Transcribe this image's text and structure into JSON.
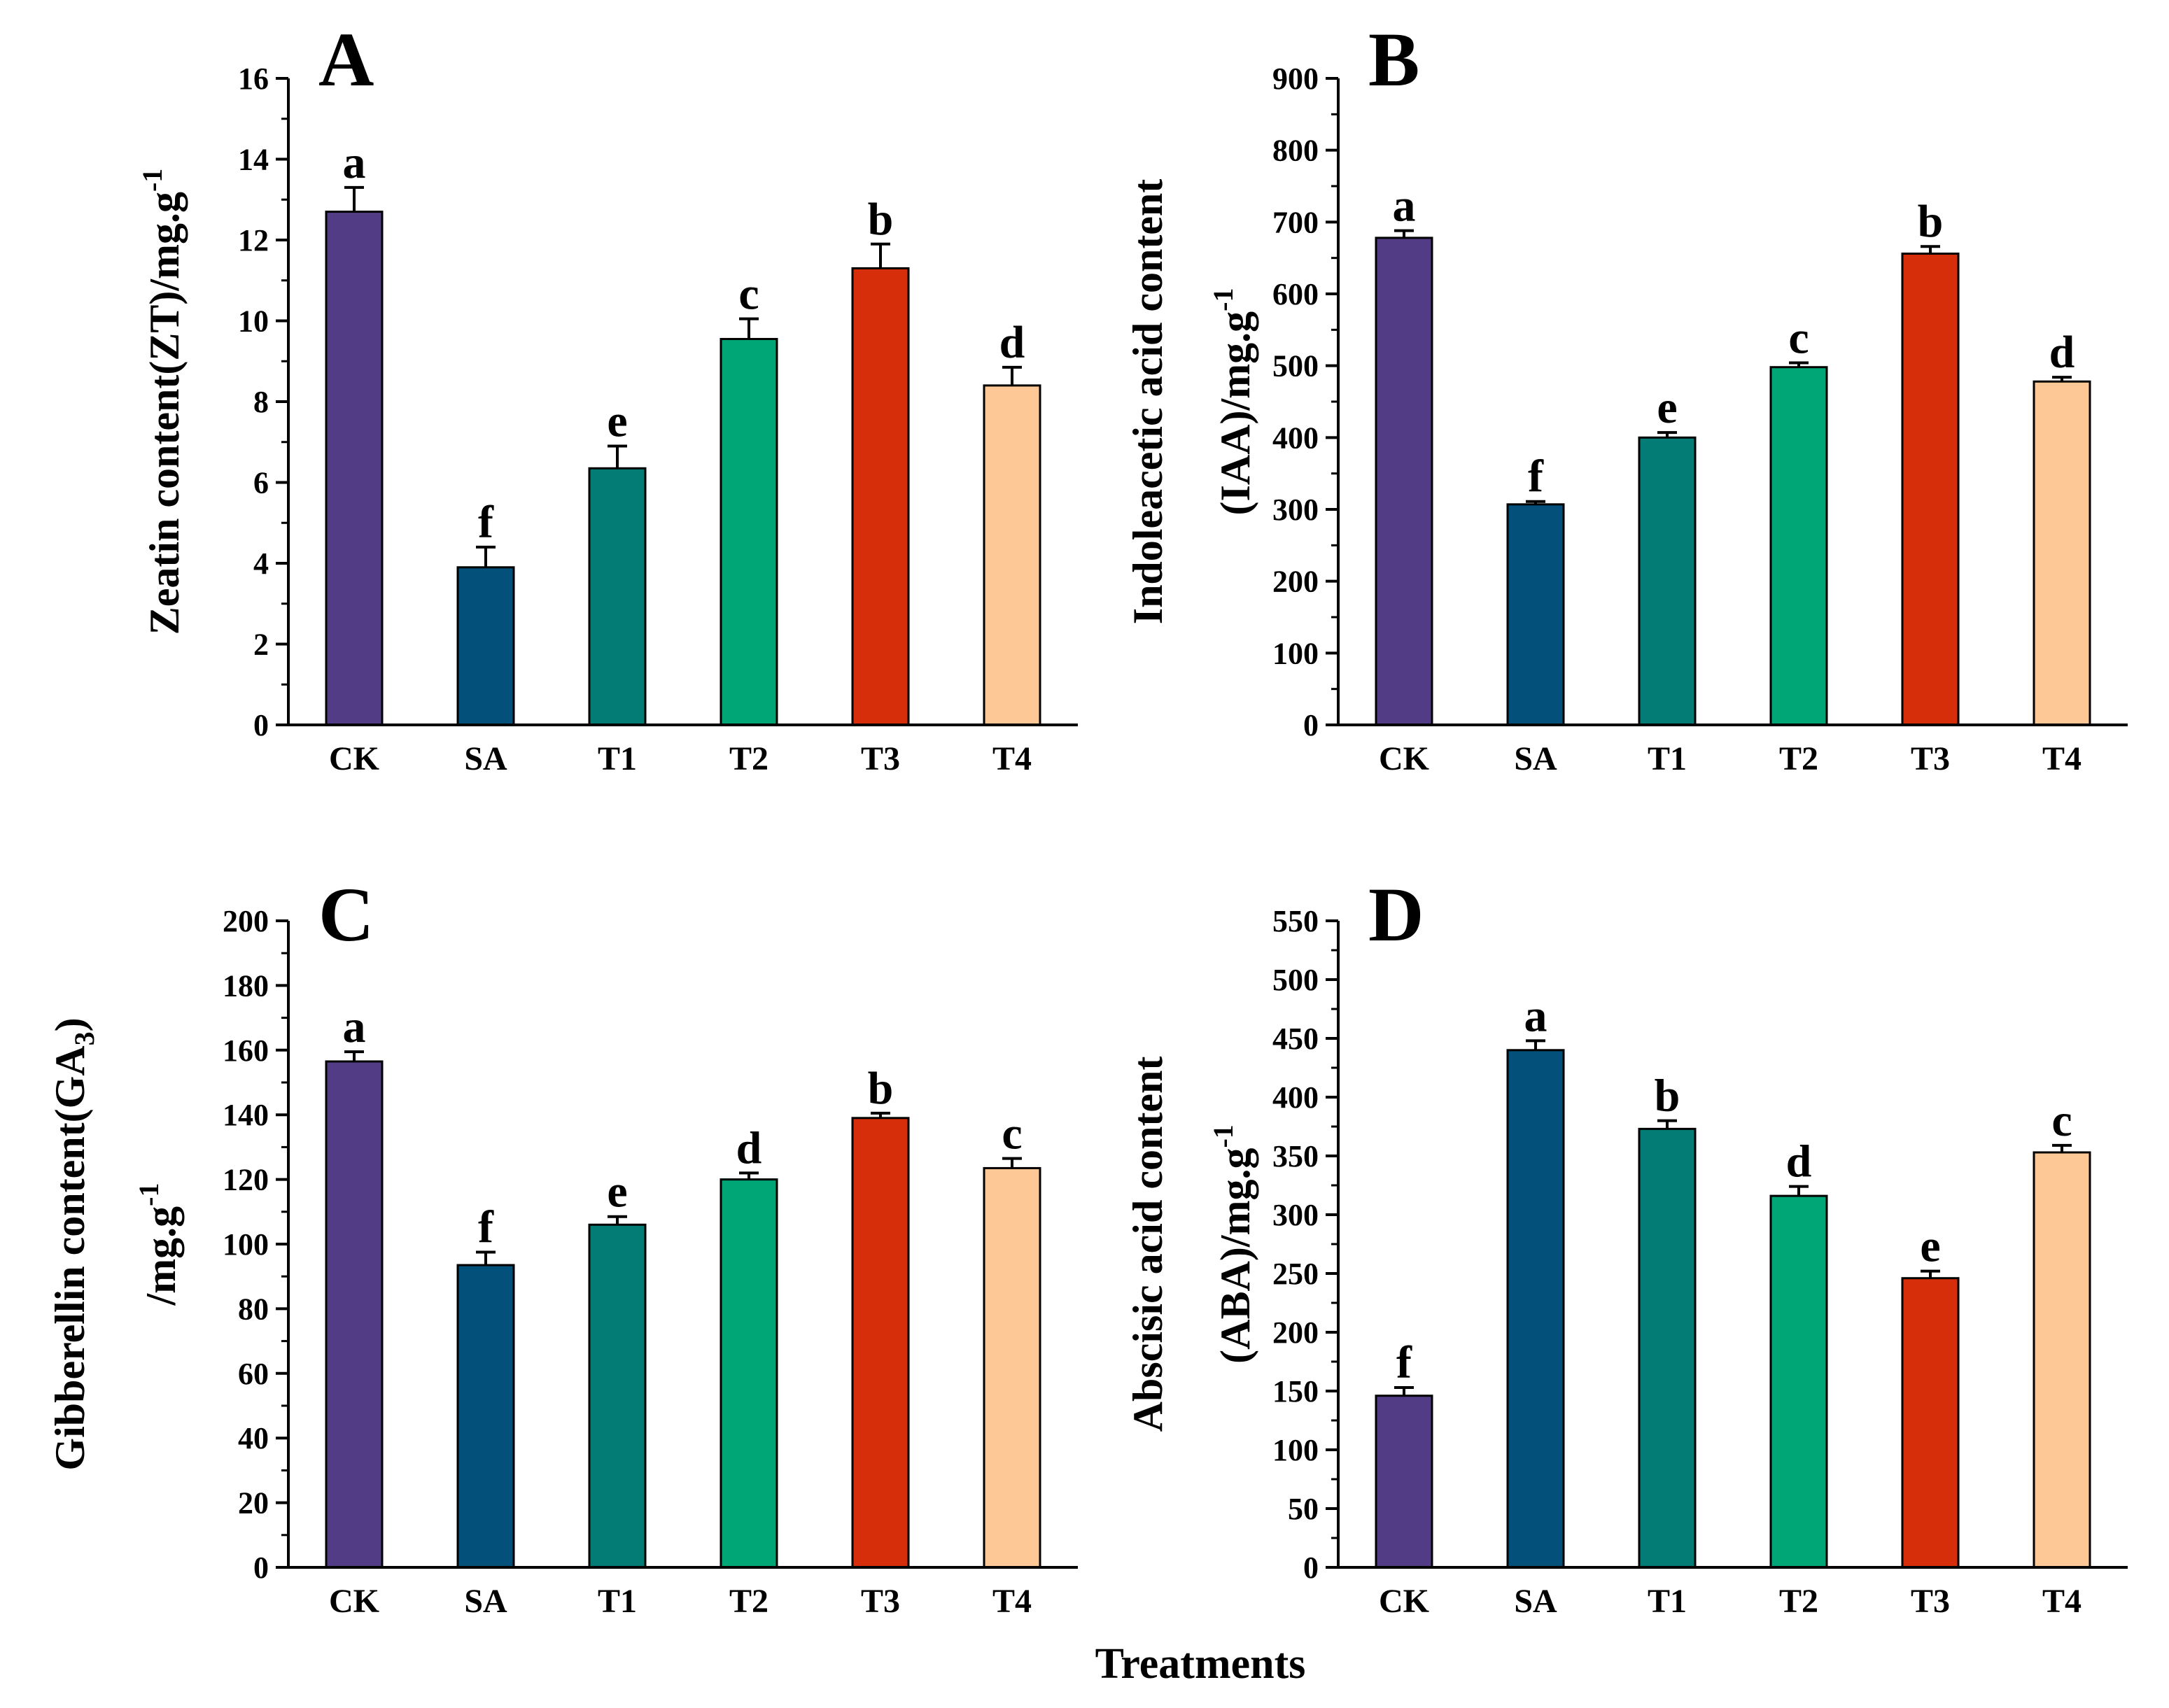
{
  "x_label": "Treatments",
  "chart_data": [
    {
      "panel": "A",
      "type": "bar",
      "ylabel_lines": [
        "Zeatin content(ZT)/mg.g"
      ],
      "ylabel_sup": "-1",
      "categories": [
        "CK",
        "SA",
        "T1",
        "T2",
        "T3",
        "T4"
      ],
      "values": [
        12.7,
        3.9,
        6.35,
        9.55,
        11.3,
        8.4
      ],
      "errors": [
        0.6,
        0.5,
        0.55,
        0.5,
        0.6,
        0.45
      ],
      "letters": [
        "a",
        "f",
        "e",
        "c",
        "b",
        "d"
      ],
      "ylim": [
        0,
        16
      ],
      "yticks": [
        0,
        2,
        4,
        6,
        8,
        10,
        12,
        14,
        16
      ],
      "colors": [
        "#523C85",
        "#03507A",
        "#027C74",
        "#00A676",
        "#D62D0A",
        "#FDC896"
      ]
    },
    {
      "panel": "B",
      "type": "bar",
      "ylabel_lines": [
        "Indoleacetic acid content",
        "(IAA)/mg.g"
      ],
      "ylabel_sup": "-1",
      "categories": [
        "CK",
        "SA",
        "T1",
        "T2",
        "T3",
        "T4"
      ],
      "values": [
        678,
        307,
        400,
        498,
        656,
        478
      ],
      "errors": [
        10,
        4,
        7,
        6,
        10,
        6
      ],
      "letters": [
        "a",
        "f",
        "e",
        "c",
        "b",
        "d"
      ],
      "ylim": [
        0,
        900
      ],
      "yticks": [
        0,
        100,
        200,
        300,
        400,
        500,
        600,
        700,
        800,
        900
      ],
      "colors": [
        "#523C85",
        "#03507A",
        "#027C74",
        "#00A676",
        "#D62D0A",
        "#FDC896"
      ]
    },
    {
      "panel": "C",
      "type": "bar",
      "ylabel_lines": [
        "Gibberellin content(GA",
        "/mg.g"
      ],
      "ylabel_sub": "3",
      "ylabel_close": ")",
      "ylabel_sup": "-1",
      "categories": [
        "CK",
        "SA",
        "T1",
        "T2",
        "T3",
        "T4"
      ],
      "values": [
        156.5,
        93.5,
        106,
        120,
        139,
        123.5
      ],
      "errors": [
        3,
        4,
        2.5,
        2,
        1.5,
        3
      ],
      "letters": [
        "a",
        "f",
        "e",
        "d",
        "b",
        "c"
      ],
      "ylim": [
        0,
        200
      ],
      "yticks": [
        0,
        20,
        40,
        60,
        80,
        100,
        120,
        140,
        160,
        180,
        200
      ],
      "colors": [
        "#523C85",
        "#03507A",
        "#027C74",
        "#00A676",
        "#D62D0A",
        "#FDC896"
      ]
    },
    {
      "panel": "D",
      "type": "bar",
      "ylabel_lines": [
        "Abscisic acid content",
        "(ABA)/mg.g"
      ],
      "ylabel_sup": "-1",
      "categories": [
        "CK",
        "SA",
        "T1",
        "T2",
        "T3",
        "T4"
      ],
      "values": [
        146,
        440,
        373,
        316,
        246,
        353
      ],
      "errors": [
        7,
        8,
        7,
        8,
        6,
        6
      ],
      "letters": [
        "f",
        "a",
        "b",
        "d",
        "e",
        "c"
      ],
      "ylim": [
        0,
        550
      ],
      "yticks": [
        0,
        50,
        100,
        150,
        200,
        250,
        300,
        350,
        400,
        450,
        500,
        550
      ],
      "colors": [
        "#523C85",
        "#03507A",
        "#027C74",
        "#00A676",
        "#D62D0A",
        "#FDC896"
      ]
    }
  ]
}
